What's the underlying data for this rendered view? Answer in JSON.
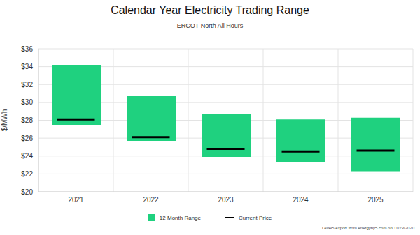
{
  "chart_data": {
    "type": "bar",
    "title": "Calendar Year Electricity Trading Range",
    "subtitle": "ERCOT North All Hours",
    "y_label": "$/MWh",
    "annotation": "Level5 export from energyby5.com on 11/23/2020",
    "categories": [
      "2021",
      "2022",
      "2023",
      "2024",
      "2025"
    ],
    "series": [
      {
        "name": "12 Month Range",
        "color": "#1fd17f",
        "type": "range",
        "values": [
          [
            27.5,
            34.2
          ],
          [
            25.7,
            30.7
          ],
          [
            23.9,
            28.7
          ],
          [
            23.3,
            28.1
          ],
          [
            22.3,
            28.3
          ]
        ]
      },
      {
        "name": "Current Price",
        "color": "#000000",
        "type": "scatter",
        "marker": "dash",
        "values": [
          28.1,
          26.1,
          24.8,
          24.5,
          24.6
        ]
      }
    ],
    "ylim": [
      20,
      36
    ],
    "yticks": [
      {
        "value": 20,
        "label": "$20"
      },
      {
        "value": 22,
        "label": "$22"
      },
      {
        "value": 24,
        "label": "$24"
      },
      {
        "value": 26,
        "label": "$26"
      },
      {
        "value": 28,
        "label": "$28"
      },
      {
        "value": 30,
        "label": "$30"
      },
      {
        "value": 32,
        "label": "$32"
      },
      {
        "value": 34,
        "label": "$34"
      },
      {
        "value": 36,
        "label": "$36"
      }
    ],
    "grid": true,
    "legend": "bottom"
  }
}
